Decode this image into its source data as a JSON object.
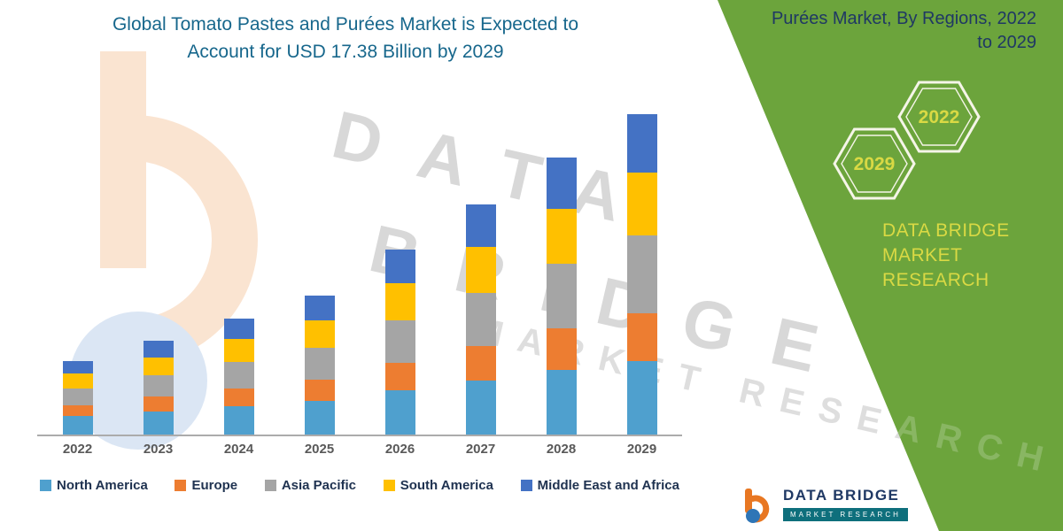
{
  "header": {
    "title_line1": "Global Tomato Pastes and Purées Market is Expected to",
    "title_line2": "Account for USD 17.38 Billion by 2029"
  },
  "side_panel": {
    "heading_line1": "Purées Market, By Regions, 2022",
    "heading_line2": "to 2029",
    "hexagon_years": [
      "2029",
      "2022"
    ],
    "brand_line1": "DATA BRIDGE MARKET",
    "brand_line2": "RESEARCH",
    "panel_color": "#6CA43C",
    "accent_yellow": "#D9D944"
  },
  "watermark": {
    "line1": "DATA",
    "line2": "BRIDGE",
    "line3": "MARKET RESEARCH"
  },
  "footer_logo": {
    "name": "DATA BRIDGE",
    "tagline": "MARKET RESEARCH"
  },
  "chart_data": {
    "type": "bar",
    "stacked": true,
    "title": "Global Tomato Pastes and Purées Market is Expected to Account for USD 17.38 Billion by 2029",
    "unit": "USD Billion",
    "values_estimated": true,
    "categories": [
      "2022",
      "2023",
      "2024",
      "2025",
      "2026",
      "2027",
      "2028",
      "2029"
    ],
    "series": [
      {
        "name": "North America",
        "color": "#4FA0CE",
        "values": [
          1.0,
          1.25,
          1.55,
          1.85,
          2.4,
          2.95,
          3.5,
          4.0
        ]
      },
      {
        "name": "Europe",
        "color": "#ED7D31",
        "values": [
          0.6,
          0.8,
          0.95,
          1.15,
          1.5,
          1.85,
          2.25,
          2.6
        ]
      },
      {
        "name": "Asia Pacific",
        "color": "#A5A5A5",
        "values": [
          0.9,
          1.15,
          1.45,
          1.7,
          2.3,
          2.9,
          3.5,
          4.2
        ]
      },
      {
        "name": "South America",
        "color": "#FFC000",
        "values": [
          0.8,
          1.0,
          1.25,
          1.5,
          2.0,
          2.5,
          3.0,
          3.4
        ]
      },
      {
        "name": "Middle East and Africa",
        "color": "#4472C4",
        "values": [
          0.7,
          0.9,
          1.1,
          1.35,
          1.85,
          2.3,
          2.8,
          3.2
        ]
      }
    ],
    "totals": [
      4.0,
      5.1,
      6.3,
      7.55,
      10.05,
      12.5,
      15.05,
      17.4
    ],
    "ylim": [
      0,
      18
    ],
    "grid": false,
    "y_axis_visible": false,
    "legend_position": "bottom"
  }
}
